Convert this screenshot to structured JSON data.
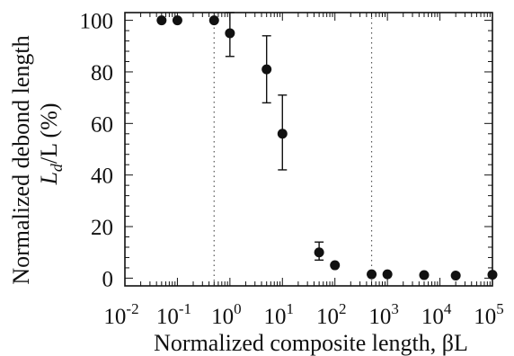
{
  "chart_data": {
    "type": "scatter",
    "xlabel": "Normalized composite length, βL",
    "ylabel": {
      "line1": "Normalized debond length",
      "line2_symbol": "L",
      "line2_subscript": "d",
      "line2_rest": "/L (%)"
    },
    "xscale": "log",
    "xlim": [
      0.01,
      100000
    ],
    "ylim": [
      -3,
      103
    ],
    "x_ticks": [
      {
        "base": "10",
        "exp": "-2",
        "value": 0.01
      },
      {
        "base": "10",
        "exp": "-1",
        "value": 0.1
      },
      {
        "base": "10",
        "exp": "0",
        "value": 1
      },
      {
        "base": "10",
        "exp": "1",
        "value": 10
      },
      {
        "base": "10",
        "exp": "2",
        "value": 100
      },
      {
        "base": "10",
        "exp": "3",
        "value": 1000
      },
      {
        "base": "10",
        "exp": "4",
        "value": 10000
      },
      {
        "base": "10",
        "exp": "5",
        "value": 100000
      }
    ],
    "y_ticks": [
      {
        "label": "0",
        "value": 0
      },
      {
        "label": "20",
        "value": 20
      },
      {
        "label": "40",
        "value": 40
      },
      {
        "label": "60",
        "value": 60
      },
      {
        "label": "80",
        "value": 80
      },
      {
        "label": "100",
        "value": 100
      }
    ],
    "points": [
      {
        "x": 0.05,
        "y": 100
      },
      {
        "x": 0.1,
        "y": 100
      },
      {
        "x": 0.5,
        "y": 100
      },
      {
        "x": 1,
        "y": 95,
        "err_low": 86,
        "err_high": 103
      },
      {
        "x": 5,
        "y": 81,
        "err_low": 68,
        "err_high": 94
      },
      {
        "x": 10,
        "y": 56,
        "err_low": 42,
        "err_high": 71
      },
      {
        "x": 50,
        "y": 10,
        "err_low": 7,
        "err_high": 14
      },
      {
        "x": 100,
        "y": 5
      },
      {
        "x": 500,
        "y": 1.5
      },
      {
        "x": 1000,
        "y": 1.5
      },
      {
        "x": 5000,
        "y": 1.2
      },
      {
        "x": 20000,
        "y": 1
      },
      {
        "x": 100000,
        "y": 1.3
      }
    ],
    "reference_lines_x": [
      0.5,
      500
    ],
    "grid": false,
    "colors": {
      "marker": "#111111",
      "reference_line": "#555555",
      "axis": "#111111"
    }
  }
}
